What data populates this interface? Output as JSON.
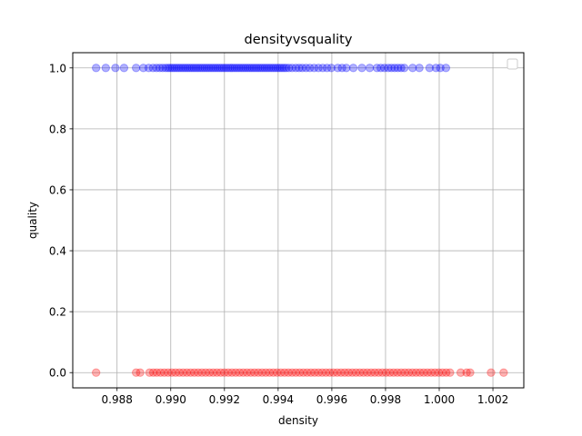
{
  "chart_data": {
    "type": "scatter",
    "title": "densityvsquality",
    "xlabel": "density",
    "ylabel": "quality",
    "xlim": [
      0.98635,
      1.00315
    ],
    "ylim": [
      -0.05,
      1.05
    ],
    "grid": true,
    "legend": {
      "placement": "top-right",
      "entries": []
    },
    "xticks": [
      0.988,
      0.99,
      0.992,
      0.994,
      0.996,
      0.998,
      1.0,
      1.002
    ],
    "xtick_labels": [
      "0.988",
      "0.990",
      "0.992",
      "0.994",
      "0.996",
      "0.998",
      "1.000",
      "1.002"
    ],
    "yticks": [
      0.0,
      0.2,
      0.4,
      0.6,
      0.8,
      1.0
    ],
    "ytick_labels": [
      "0.0",
      "0.2",
      "0.4",
      "0.6",
      "0.8",
      "1.0"
    ],
    "series": [
      {
        "color": "#0000ff",
        "alpha": 0.3,
        "y_value": 1.0,
        "x": [
          0.98722,
          0.98758,
          0.98794,
          0.98826,
          0.98871,
          0.98898,
          0.98918,
          0.98934,
          0.98947,
          0.98959,
          0.9897,
          0.98981,
          0.9899,
          0.98998,
          0.99006,
          0.99014,
          0.99022,
          0.9903,
          0.99038,
          0.99046,
          0.99054,
          0.99062,
          0.9907,
          0.99078,
          0.99086,
          0.99094,
          0.99102,
          0.9911,
          0.99118,
          0.99126,
          0.99134,
          0.99142,
          0.9915,
          0.99158,
          0.99166,
          0.99174,
          0.99182,
          0.9919,
          0.99198,
          0.99206,
          0.99214,
          0.99222,
          0.9923,
          0.99238,
          0.99246,
          0.99254,
          0.99262,
          0.9927,
          0.99278,
          0.99286,
          0.99294,
          0.99302,
          0.9931,
          0.99318,
          0.99326,
          0.99334,
          0.99342,
          0.9935,
          0.99358,
          0.99366,
          0.99374,
          0.99382,
          0.9939,
          0.99398,
          0.99406,
          0.99414,
          0.99422,
          0.9943,
          0.9944,
          0.99452,
          0.99466,
          0.99478,
          0.9949,
          0.99504,
          0.99518,
          0.99534,
          0.9955,
          0.99566,
          0.99582,
          0.99598,
          0.99622,
          0.99638,
          0.99654,
          0.9968,
          0.99712,
          0.99741,
          0.99768,
          0.99782,
          0.99796,
          0.9981,
          0.99822,
          0.99834,
          0.99846,
          0.99858,
          0.9987,
          0.99901,
          0.99926,
          0.99964,
          0.99988,
          1.00004,
          1.00025
        ]
      },
      {
        "color": "#ff0000",
        "alpha": 0.3,
        "y_value": 0.0,
        "x": [
          0.98722,
          0.98871,
          0.98886,
          0.98921,
          0.98935,
          0.98948,
          0.98962,
          0.98976,
          0.9899,
          0.99004,
          0.99018,
          0.99032,
          0.99046,
          0.9906,
          0.99074,
          0.99088,
          0.99102,
          0.99116,
          0.9913,
          0.99144,
          0.99158,
          0.99172,
          0.99186,
          0.992,
          0.99214,
          0.99228,
          0.99242,
          0.99256,
          0.9927,
          0.99284,
          0.99298,
          0.99312,
          0.99326,
          0.9934,
          0.99354,
          0.99368,
          0.99382,
          0.99396,
          0.9941,
          0.99424,
          0.99438,
          0.99452,
          0.99466,
          0.9948,
          0.99494,
          0.99508,
          0.99522,
          0.99536,
          0.9955,
          0.99564,
          0.99578,
          0.99592,
          0.99606,
          0.9962,
          0.99634,
          0.99648,
          0.99662,
          0.99676,
          0.9969,
          0.99704,
          0.99718,
          0.99732,
          0.99746,
          0.9976,
          0.99774,
          0.99788,
          0.99802,
          0.99816,
          0.9983,
          0.99844,
          0.99858,
          0.99872,
          0.99886,
          0.999,
          0.99914,
          0.99928,
          0.99942,
          0.99956,
          0.9997,
          0.99984,
          0.99998,
          1.00012,
          1.00026,
          1.0004,
          1.0008,
          1.00102,
          1.00115,
          1.00193,
          1.0024
        ]
      }
    ]
  }
}
